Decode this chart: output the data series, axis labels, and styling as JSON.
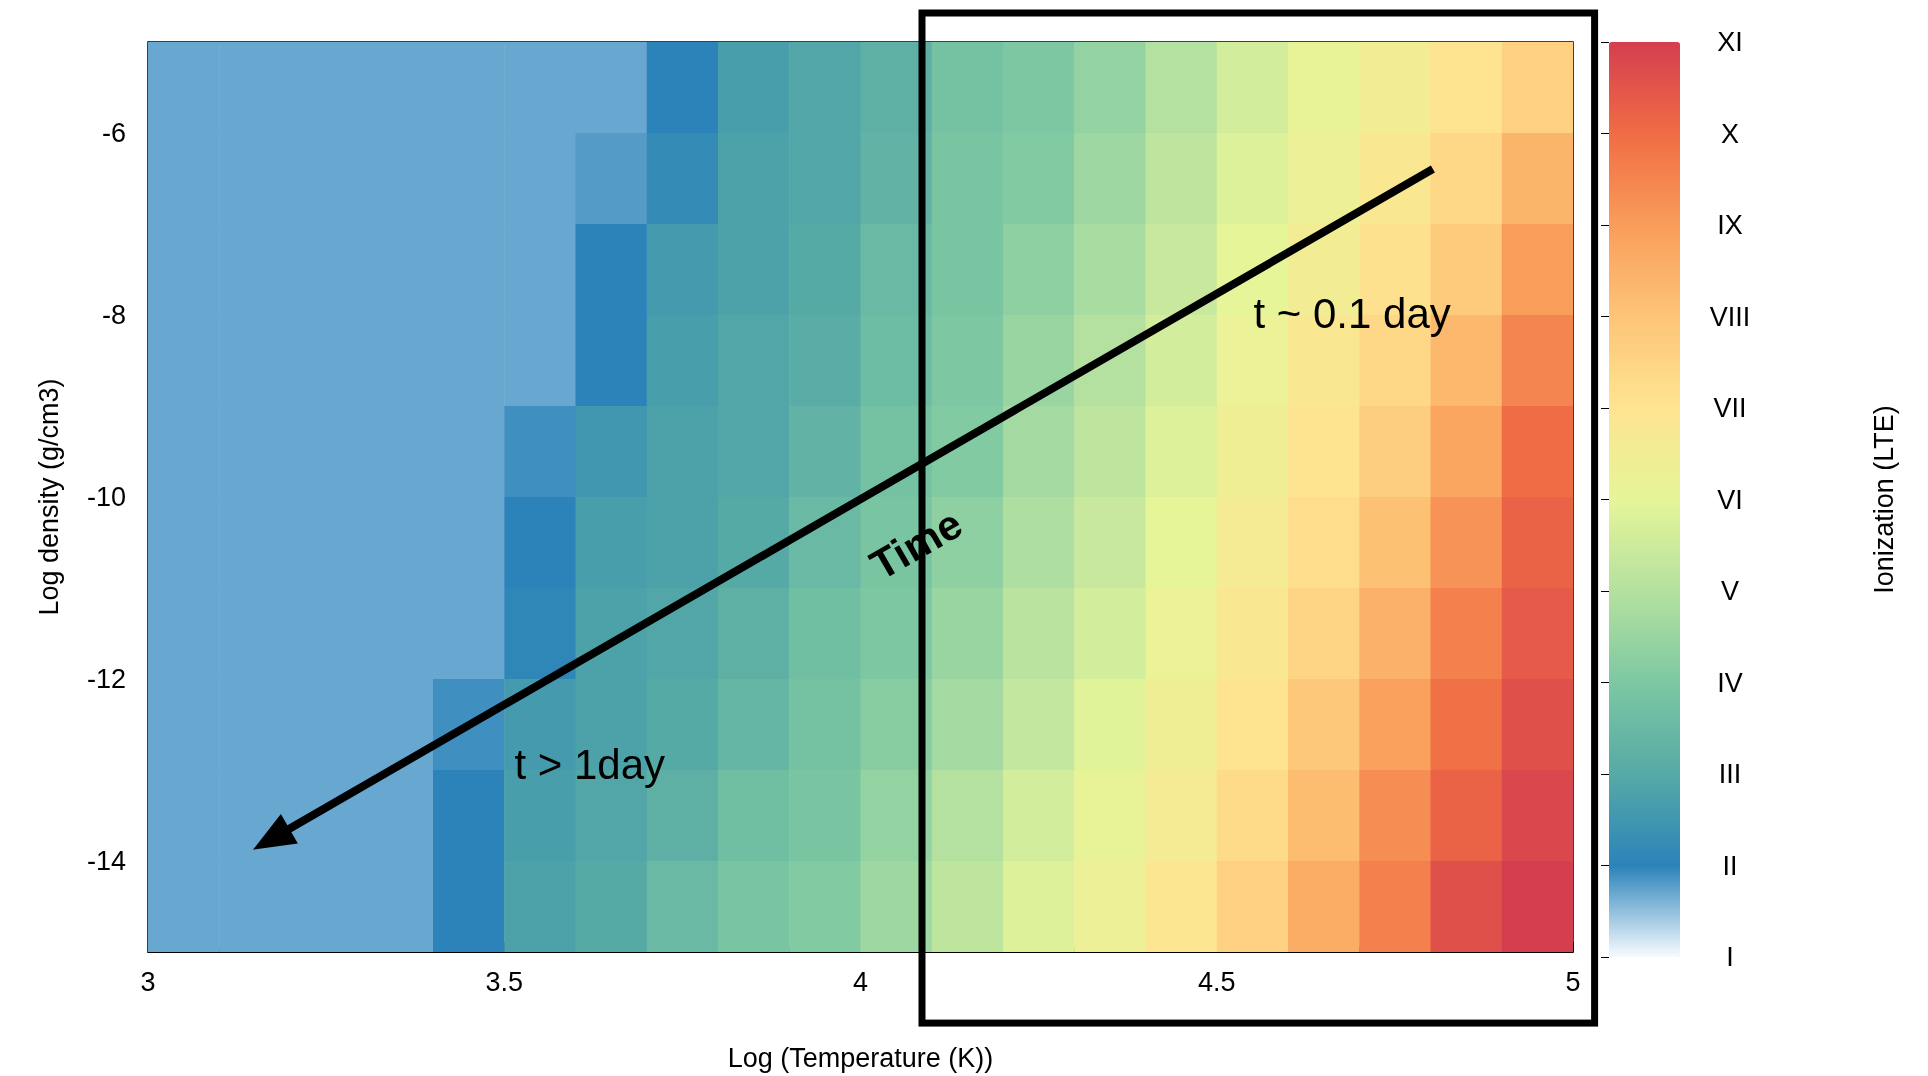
{
  "chart_data": {
    "type": "heatmap",
    "xlabel": "Log (Temperature (K))",
    "ylabel": "Log density (g/cm3)",
    "clabel": "Ionization (LTE)",
    "xlim": [
      3,
      5
    ],
    "xticks": [
      3,
      3.5,
      4,
      4.5,
      5
    ],
    "ylim": [
      -15,
      -5
    ],
    "yticks": [
      -14,
      -12,
      -10,
      -8,
      -6
    ],
    "clim": [
      1,
      11
    ],
    "cticks": [
      {
        "value": 1,
        "label": "I"
      },
      {
        "value": 2,
        "label": "II"
      },
      {
        "value": 3,
        "label": "III"
      },
      {
        "value": 4,
        "label": "IV"
      },
      {
        "value": 5,
        "label": "V"
      },
      {
        "value": 6,
        "label": "VI"
      },
      {
        "value": 7,
        "label": "VII"
      },
      {
        "value": 8,
        "label": "VIII"
      },
      {
        "value": 9,
        "label": "IX"
      },
      {
        "value": 10,
        "label": "X"
      },
      {
        "value": 11,
        "label": "XI"
      }
    ],
    "colors": [
      "#f7fbff",
      "#2b83ba",
      "#56aaa6",
      "#7dc8a2",
      "#b4e1a0",
      "#e6f598",
      "#fee491",
      "#fdc577",
      "#f99d5a",
      "#f06c45",
      "#d53e4f"
    ],
    "cells": [
      [
        1.7,
        1.7,
        1.7,
        1.7,
        1.7,
        1.7,
        1.7,
        2.0,
        2.7,
        2.9,
        3.2,
        3.8,
        4.0,
        4.4,
        5.0,
        5.6,
        6.1,
        6.5,
        7.0,
        7.6
      ],
      [
        1.7,
        1.7,
        1.7,
        1.7,
        1.7,
        1.7,
        1.8,
        2.2,
        2.8,
        2.9,
        3.3,
        3.9,
        4.1,
        4.6,
        5.2,
        5.8,
        6.3,
        6.8,
        7.4,
        8.4
      ],
      [
        1.7,
        1.7,
        1.7,
        1.7,
        1.7,
        1.7,
        2.0,
        2.6,
        2.8,
        3.0,
        3.5,
        3.9,
        4.3,
        4.8,
        5.4,
        6.0,
        6.5,
        7.1,
        7.8,
        9.0
      ],
      [
        1.7,
        1.7,
        1.7,
        1.7,
        1.7,
        1.7,
        2.0,
        2.7,
        2.9,
        3.1,
        3.6,
        4.0,
        4.5,
        5.0,
        5.6,
        6.2,
        6.8,
        7.4,
        8.3,
        9.5
      ],
      [
        1.7,
        1.7,
        1.7,
        1.7,
        1.7,
        1.9,
        2.5,
        2.8,
        2.9,
        3.3,
        3.8,
        4.1,
        4.7,
        5.2,
        5.8,
        6.4,
        7.0,
        7.7,
        8.8,
        10.0
      ],
      [
        1.7,
        1.7,
        1.7,
        1.7,
        1.7,
        2.0,
        2.7,
        2.8,
        3.0,
        3.5,
        3.9,
        4.3,
        4.9,
        5.4,
        6.0,
        6.6,
        7.2,
        8.1,
        9.2,
        10.2
      ],
      [
        1.7,
        1.7,
        1.7,
        1.7,
        1.7,
        2.1,
        2.8,
        2.9,
        3.2,
        3.7,
        4.0,
        4.5,
        5.1,
        5.6,
        6.2,
        6.8,
        7.5,
        8.5,
        9.6,
        10.4
      ],
      [
        1.7,
        1.7,
        1.7,
        1.7,
        1.9,
        2.6,
        2.8,
        3.0,
        3.4,
        3.8,
        4.2,
        4.7,
        5.3,
        5.9,
        6.4,
        7.0,
        7.9,
        8.9,
        9.9,
        10.6
      ],
      [
        1.7,
        1.7,
        1.7,
        1.7,
        2.0,
        2.7,
        2.9,
        3.2,
        3.7,
        3.9,
        4.4,
        5.0,
        5.6,
        6.1,
        6.6,
        7.3,
        8.2,
        9.3,
        10.2,
        10.8
      ],
      [
        1.7,
        1.7,
        1.7,
        1.7,
        2.0,
        2.8,
        3.0,
        3.5,
        3.9,
        4.1,
        4.6,
        5.2,
        5.8,
        6.3,
        6.9,
        7.6,
        8.6,
        9.6,
        10.6,
        11.0
      ]
    ],
    "annotations": [
      "Time",
      "t ~ 0.1 day",
      "t > 1day"
    ]
  }
}
